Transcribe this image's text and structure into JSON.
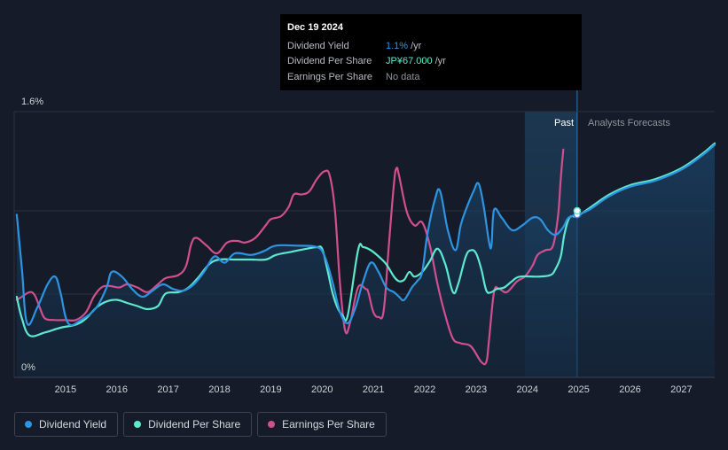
{
  "tooltip": {
    "date": "Dec 19 2024",
    "rows": [
      {
        "label": "Dividend Yield",
        "value": "1.1%",
        "unit": "/yr",
        "color": "#2e93e0"
      },
      {
        "label": "Dividend Per Share",
        "value": "JP¥67.000",
        "unit": "/yr",
        "color": "#5ee8cf"
      },
      {
        "label": "Earnings Per Share",
        "value": "No data",
        "unit": "",
        "color": "#8f949c"
      }
    ]
  },
  "regions": {
    "past": "Past",
    "forecast": "Analysts Forecasts"
  },
  "legend": [
    {
      "label": "Dividend Yield",
      "color": "#2e93e0"
    },
    {
      "label": "Dividend Per Share",
      "color": "#5ee8cf"
    },
    {
      "label": "Earnings Per Share",
      "color": "#d14f8f"
    }
  ],
  "chart_data": {
    "type": "line",
    "title": "",
    "x_range": [
      2014.0,
      2027.65
    ],
    "ylim": [
      0,
      1.6
    ],
    "y_tick_labels": [
      "1.6%",
      "0%"
    ],
    "x_ticks": [
      2015,
      2016,
      2017,
      2018,
      2019,
      2020,
      2021,
      2022,
      2023,
      2024,
      2025,
      2026,
      2027
    ],
    "past_region": [
      2023.95,
      2024.97
    ],
    "series": [
      {
        "name": "Dividend Yield",
        "color": "#2e93e0",
        "points": [
          [
            2014.05,
            1.05
          ],
          [
            2014.15,
            0.7
          ],
          [
            2014.25,
            0.35
          ],
          [
            2014.45,
            0.45
          ],
          [
            2014.65,
            0.6
          ],
          [
            2014.8,
            0.65
          ],
          [
            2014.9,
            0.55
          ],
          [
            2015.05,
            0.35
          ],
          [
            2015.3,
            0.37
          ],
          [
            2015.6,
            0.45
          ],
          [
            2015.8,
            0.58
          ],
          [
            2015.9,
            0.68
          ],
          [
            2016.1,
            0.65
          ],
          [
            2016.3,
            0.57
          ],
          [
            2016.5,
            0.52
          ],
          [
            2016.7,
            0.56
          ],
          [
            2016.9,
            0.6
          ],
          [
            2017.1,
            0.57
          ],
          [
            2017.3,
            0.56
          ],
          [
            2017.5,
            0.6
          ],
          [
            2017.7,
            0.68
          ],
          [
            2017.9,
            0.78
          ],
          [
            2018.1,
            0.74
          ],
          [
            2018.3,
            0.8
          ],
          [
            2018.6,
            0.79
          ],
          [
            2018.75,
            0.8
          ],
          [
            2018.9,
            0.82
          ],
          [
            2019.1,
            0.85
          ],
          [
            2019.5,
            0.85
          ],
          [
            2019.9,
            0.84
          ],
          [
            2020.05,
            0.78
          ],
          [
            2020.2,
            0.62
          ],
          [
            2020.35,
            0.42
          ],
          [
            2020.5,
            0.35
          ],
          [
            2020.65,
            0.45
          ],
          [
            2020.8,
            0.62
          ],
          [
            2020.95,
            0.74
          ],
          [
            2021.1,
            0.68
          ],
          [
            2021.25,
            0.58
          ],
          [
            2021.4,
            0.55
          ],
          [
            2021.5,
            0.52
          ],
          [
            2021.6,
            0.5
          ],
          [
            2021.75,
            0.58
          ],
          [
            2021.85,
            0.62
          ],
          [
            2021.95,
            0.68
          ],
          [
            2022.05,
            0.92
          ],
          [
            2022.2,
            1.15
          ],
          [
            2022.3,
            1.2
          ],
          [
            2022.45,
            0.95
          ],
          [
            2022.6,
            0.82
          ],
          [
            2022.7,
            0.98
          ],
          [
            2022.8,
            1.08
          ],
          [
            2022.95,
            1.2
          ],
          [
            2023.05,
            1.25
          ],
          [
            2023.15,
            1.1
          ],
          [
            2023.25,
            0.88
          ],
          [
            2023.3,
            0.85
          ],
          [
            2023.35,
            1.08
          ],
          [
            2023.5,
            1.03
          ],
          [
            2023.7,
            0.95
          ],
          [
            2023.9,
            0.98
          ],
          [
            2024.1,
            1.03
          ],
          [
            2024.25,
            1.02
          ],
          [
            2024.4,
            0.95
          ],
          [
            2024.55,
            0.92
          ],
          [
            2024.7,
            0.97
          ],
          [
            2024.8,
            1.03
          ],
          [
            2024.97,
            1.05
          ],
          [
            2025.2,
            1.08
          ],
          [
            2025.6,
            1.17
          ],
          [
            2026.0,
            1.23
          ],
          [
            2026.5,
            1.27
          ],
          [
            2027.0,
            1.34
          ],
          [
            2027.4,
            1.43
          ],
          [
            2027.65,
            1.5
          ]
        ]
      },
      {
        "name": "Dividend Per Share",
        "color": "#5ee8cf",
        "points": [
          [
            2014.05,
            0.52
          ],
          [
            2014.15,
            0.38
          ],
          [
            2014.3,
            0.27
          ],
          [
            2014.6,
            0.29
          ],
          [
            2014.9,
            0.32
          ],
          [
            2015.2,
            0.34
          ],
          [
            2015.4,
            0.38
          ],
          [
            2015.6,
            0.45
          ],
          [
            2015.8,
            0.49
          ],
          [
            2016.0,
            0.5
          ],
          [
            2016.2,
            0.48
          ],
          [
            2016.4,
            0.46
          ],
          [
            2016.6,
            0.44
          ],
          [
            2016.8,
            0.46
          ],
          [
            2016.95,
            0.54
          ],
          [
            2017.2,
            0.55
          ],
          [
            2017.4,
            0.58
          ],
          [
            2017.6,
            0.65
          ],
          [
            2017.8,
            0.73
          ],
          [
            2018.0,
            0.76
          ],
          [
            2018.3,
            0.76
          ],
          [
            2018.6,
            0.76
          ],
          [
            2018.9,
            0.76
          ],
          [
            2019.1,
            0.79
          ],
          [
            2019.4,
            0.81
          ],
          [
            2019.7,
            0.83
          ],
          [
            2019.9,
            0.84
          ],
          [
            2020.0,
            0.83
          ],
          [
            2020.1,
            0.7
          ],
          [
            2020.2,
            0.55
          ],
          [
            2020.3,
            0.45
          ],
          [
            2020.4,
            0.4
          ],
          [
            2020.5,
            0.4
          ],
          [
            2020.7,
            0.82
          ],
          [
            2020.8,
            0.84
          ],
          [
            2020.95,
            0.82
          ],
          [
            2021.1,
            0.78
          ],
          [
            2021.25,
            0.73
          ],
          [
            2021.4,
            0.65
          ],
          [
            2021.5,
            0.62
          ],
          [
            2021.6,
            0.63
          ],
          [
            2021.7,
            0.68
          ],
          [
            2021.8,
            0.65
          ],
          [
            2021.95,
            0.68
          ],
          [
            2022.1,
            0.75
          ],
          [
            2022.25,
            0.83
          ],
          [
            2022.4,
            0.73
          ],
          [
            2022.55,
            0.55
          ],
          [
            2022.65,
            0.6
          ],
          [
            2022.8,
            0.78
          ],
          [
            2022.9,
            0.82
          ],
          [
            2023.0,
            0.8
          ],
          [
            2023.1,
            0.7
          ],
          [
            2023.2,
            0.56
          ],
          [
            2023.3,
            0.55
          ],
          [
            2023.4,
            0.57
          ],
          [
            2023.55,
            0.58
          ],
          [
            2023.7,
            0.62
          ],
          [
            2023.85,
            0.65
          ],
          [
            2024.2,
            0.65
          ],
          [
            2024.45,
            0.66
          ],
          [
            2024.55,
            0.7
          ],
          [
            2024.65,
            0.78
          ],
          [
            2024.72,
            0.92
          ],
          [
            2024.82,
            1.03
          ],
          [
            2024.97,
            1.04
          ],
          [
            2025.2,
            1.09
          ],
          [
            2025.6,
            1.18
          ],
          [
            2026.0,
            1.24
          ],
          [
            2026.5,
            1.28
          ],
          [
            2027.0,
            1.35
          ],
          [
            2027.4,
            1.44
          ],
          [
            2027.65,
            1.51
          ]
        ]
      },
      {
        "name": "Earnings Per Share",
        "color": "#d14f8f",
        "points": [
          [
            2014.05,
            0.5
          ],
          [
            2014.15,
            0.52
          ],
          [
            2014.3,
            0.55
          ],
          [
            2014.4,
            0.53
          ],
          [
            2014.5,
            0.45
          ],
          [
            2014.6,
            0.38
          ],
          [
            2014.8,
            0.37
          ],
          [
            2015.0,
            0.37
          ],
          [
            2015.2,
            0.37
          ],
          [
            2015.4,
            0.42
          ],
          [
            2015.55,
            0.52
          ],
          [
            2015.7,
            0.58
          ],
          [
            2015.85,
            0.59
          ],
          [
            2016.05,
            0.58
          ],
          [
            2016.2,
            0.6
          ],
          [
            2016.4,
            0.58
          ],
          [
            2016.6,
            0.55
          ],
          [
            2016.8,
            0.6
          ],
          [
            2016.95,
            0.64
          ],
          [
            2017.2,
            0.66
          ],
          [
            2017.35,
            0.72
          ],
          [
            2017.45,
            0.86
          ],
          [
            2017.55,
            0.9
          ],
          [
            2017.75,
            0.85
          ],
          [
            2017.95,
            0.8
          ],
          [
            2018.15,
            0.87
          ],
          [
            2018.35,
            0.88
          ],
          [
            2018.5,
            0.87
          ],
          [
            2018.7,
            0.9
          ],
          [
            2018.9,
            0.98
          ],
          [
            2019.0,
            1.02
          ],
          [
            2019.2,
            1.04
          ],
          [
            2019.35,
            1.1
          ],
          [
            2019.45,
            1.18
          ],
          [
            2019.6,
            1.18
          ],
          [
            2019.75,
            1.2
          ],
          [
            2019.9,
            1.28
          ],
          [
            2020.05,
            1.33
          ],
          [
            2020.15,
            1.3
          ],
          [
            2020.25,
            1.08
          ],
          [
            2020.35,
            0.6
          ],
          [
            2020.45,
            0.3
          ],
          [
            2020.55,
            0.36
          ],
          [
            2020.7,
            0.58
          ],
          [
            2020.85,
            0.57
          ],
          [
            2020.9,
            0.55
          ],
          [
            2021.0,
            0.42
          ],
          [
            2021.1,
            0.39
          ],
          [
            2021.2,
            0.43
          ],
          [
            2021.3,
            0.85
          ],
          [
            2021.4,
            1.25
          ],
          [
            2021.45,
            1.35
          ],
          [
            2021.5,
            1.3
          ],
          [
            2021.65,
            1.07
          ],
          [
            2021.8,
            0.98
          ],
          [
            2021.95,
            1.0
          ],
          [
            2022.1,
            0.85
          ],
          [
            2022.25,
            0.6
          ],
          [
            2022.4,
            0.4
          ],
          [
            2022.55,
            0.25
          ],
          [
            2022.7,
            0.22
          ],
          [
            2022.9,
            0.2
          ],
          [
            2023.1,
            0.1
          ],
          [
            2023.2,
            0.1
          ],
          [
            2023.25,
            0.23
          ],
          [
            2023.35,
            0.55
          ],
          [
            2023.45,
            0.57
          ],
          [
            2023.6,
            0.55
          ],
          [
            2023.8,
            0.62
          ],
          [
            2023.95,
            0.65
          ],
          [
            2024.1,
            0.72
          ],
          [
            2024.2,
            0.79
          ],
          [
            2024.35,
            0.82
          ],
          [
            2024.5,
            0.85
          ],
          [
            2024.6,
            1.05
          ],
          [
            2024.65,
            1.28
          ],
          [
            2024.7,
            1.47
          ]
        ]
      }
    ]
  }
}
